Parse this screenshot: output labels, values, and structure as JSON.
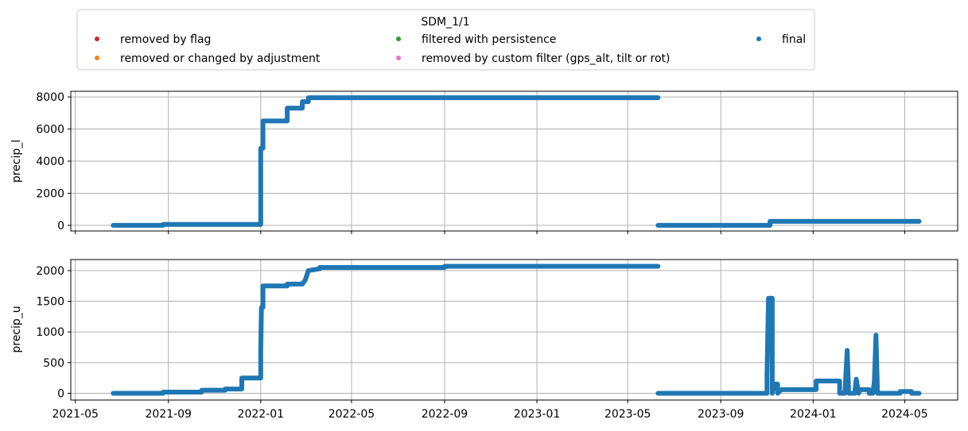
{
  "legend": {
    "title": "SDM_1/1",
    "entries": [
      {
        "label": "removed by flag",
        "color": "#d62728"
      },
      {
        "label": "removed or changed by adjustment",
        "color": "#ff7f0e"
      },
      {
        "label": "filtered with persistence",
        "color": "#2ca02c"
      },
      {
        "label": "removed by custom filter (gps_alt, tilt or rot)",
        "color": "#e377c2"
      },
      {
        "label": "final",
        "color": "#1f77b4"
      }
    ]
  },
  "chart_data": [
    {
      "type": "scatter",
      "title": "",
      "xlabel": "",
      "ylabel": "precip_l",
      "x_axis": "date",
      "x_ticks": [
        "2021-05",
        "2021-09",
        "2022-01",
        "2022-05",
        "2022-09",
        "2023-01",
        "2023-05",
        "2023-09",
        "2024-01",
        "2024-05"
      ],
      "x_tick_labels_visible": false,
      "y_ticks": [
        0,
        2000,
        4000,
        6000,
        8000
      ],
      "ylim": [
        -350,
        8350
      ],
      "xlim": [
        "2021-04-25",
        "2024-07-10"
      ],
      "grid": true,
      "series": [
        {
          "name": "final",
          "color": "#1f77b4",
          "segments": [
            [
              [
                "2021-06-20",
                0
              ],
              [
                "2021-08-25",
                0
              ],
              [
                "2021-08-25",
                60
              ],
              [
                "2022-01-01",
                60
              ],
              [
                "2022-01-01",
                4800
              ],
              [
                "2022-01-04",
                4800
              ],
              [
                "2022-01-04",
                6500
              ],
              [
                "2022-02-05",
                6500
              ],
              [
                "2022-02-05",
                7300
              ],
              [
                "2022-02-25",
                7300
              ],
              [
                "2022-02-25",
                7700
              ],
              [
                "2022-03-05",
                7700
              ],
              [
                "2022-03-05",
                7950
              ],
              [
                "2023-06-10",
                7950
              ]
            ],
            [
              [
                "2023-06-10",
                0
              ],
              [
                "2023-11-05",
                0
              ],
              [
                "2023-11-05",
                250
              ],
              [
                "2024-05-20",
                250
              ]
            ]
          ]
        }
      ]
    },
    {
      "type": "scatter",
      "title": "",
      "xlabel": "",
      "ylabel": "precip_u",
      "x_axis": "date",
      "x_ticks": [
        "2021-05",
        "2021-09",
        "2022-01",
        "2022-05",
        "2022-09",
        "2023-01",
        "2023-05",
        "2023-09",
        "2024-01",
        "2024-05"
      ],
      "x_tick_labels": [
        "2021-05",
        "2021-09",
        "2022-01",
        "2022-05",
        "2022-09",
        "2023-01",
        "2023-05",
        "2023-09",
        "2024-01",
        "2024-05"
      ],
      "x_tick_labels_visible": true,
      "y_ticks": [
        0,
        500,
        1000,
        1500,
        2000
      ],
      "y_tick_labels": [
        "0",
        "500",
        "1000",
        "1500",
        "2000"
      ],
      "ylim": [
        -110,
        2180
      ],
      "xlim": [
        "2021-04-25",
        "2024-07-10"
      ],
      "grid": true,
      "series": [
        {
          "name": "final",
          "color": "#1f77b4",
          "segments": [
            [
              [
                "2021-06-20",
                0
              ],
              [
                "2021-08-25",
                0
              ],
              [
                "2021-08-25",
                20
              ],
              [
                "2021-10-15",
                20
              ],
              [
                "2021-10-15",
                50
              ],
              [
                "2021-11-15",
                50
              ],
              [
                "2021-11-15",
                70
              ],
              [
                "2021-12-07",
                70
              ],
              [
                "2021-12-07",
                250
              ],
              [
                "2022-01-01",
                250
              ],
              [
                "2022-01-01",
                700
              ],
              [
                "2022-01-02",
                1400
              ],
              [
                "2022-01-04",
                1400
              ],
              [
                "2022-01-04",
                1750
              ],
              [
                "2022-02-05",
                1750
              ],
              [
                "2022-02-05",
                1780
              ],
              [
                "2022-02-25",
                1780
              ],
              [
                "2022-03-01",
                1850
              ],
              [
                "2022-03-05",
                2000
              ],
              [
                "2022-03-20",
                2030
              ],
              [
                "2022-03-20",
                2050
              ],
              [
                "2022-09-01",
                2050
              ],
              [
                "2022-09-01",
                2070
              ],
              [
                "2023-06-10",
                2070
              ]
            ],
            [
              [
                "2023-06-10",
                0
              ],
              [
                "2023-11-01",
                0
              ],
              [
                "2023-11-01",
                300
              ],
              [
                "2023-11-03",
                1550
              ],
              [
                "2023-11-08",
                1550
              ],
              [
                "2023-11-08",
                0
              ],
              [
                "2023-11-10",
                150
              ],
              [
                "2023-11-15",
                150
              ],
              [
                "2023-11-15",
                0
              ],
              [
                "2023-11-20",
                60
              ],
              [
                "2024-01-05",
                60
              ],
              [
                "2024-01-05",
                200
              ],
              [
                "2024-02-05",
                200
              ],
              [
                "2024-02-05",
                0
              ],
              [
                "2024-02-12",
                0
              ],
              [
                "2024-02-15",
                700
              ],
              [
                "2024-02-17",
                0
              ],
              [
                "2024-02-25",
                0
              ],
              [
                "2024-02-27",
                230
              ],
              [
                "2024-03-01",
                0
              ],
              [
                "2024-03-03",
                60
              ],
              [
                "2024-03-15",
                60
              ],
              [
                "2024-03-15",
                0
              ],
              [
                "2024-03-20",
                0
              ],
              [
                "2024-03-22",
                200
              ],
              [
                "2024-03-24",
                950
              ],
              [
                "2024-03-26",
                0
              ],
              [
                "2024-04-25",
                0
              ],
              [
                "2024-04-25",
                30
              ],
              [
                "2024-05-10",
                30
              ],
              [
                "2024-05-10",
                0
              ],
              [
                "2024-05-20",
                0
              ]
            ]
          ]
        }
      ]
    }
  ]
}
